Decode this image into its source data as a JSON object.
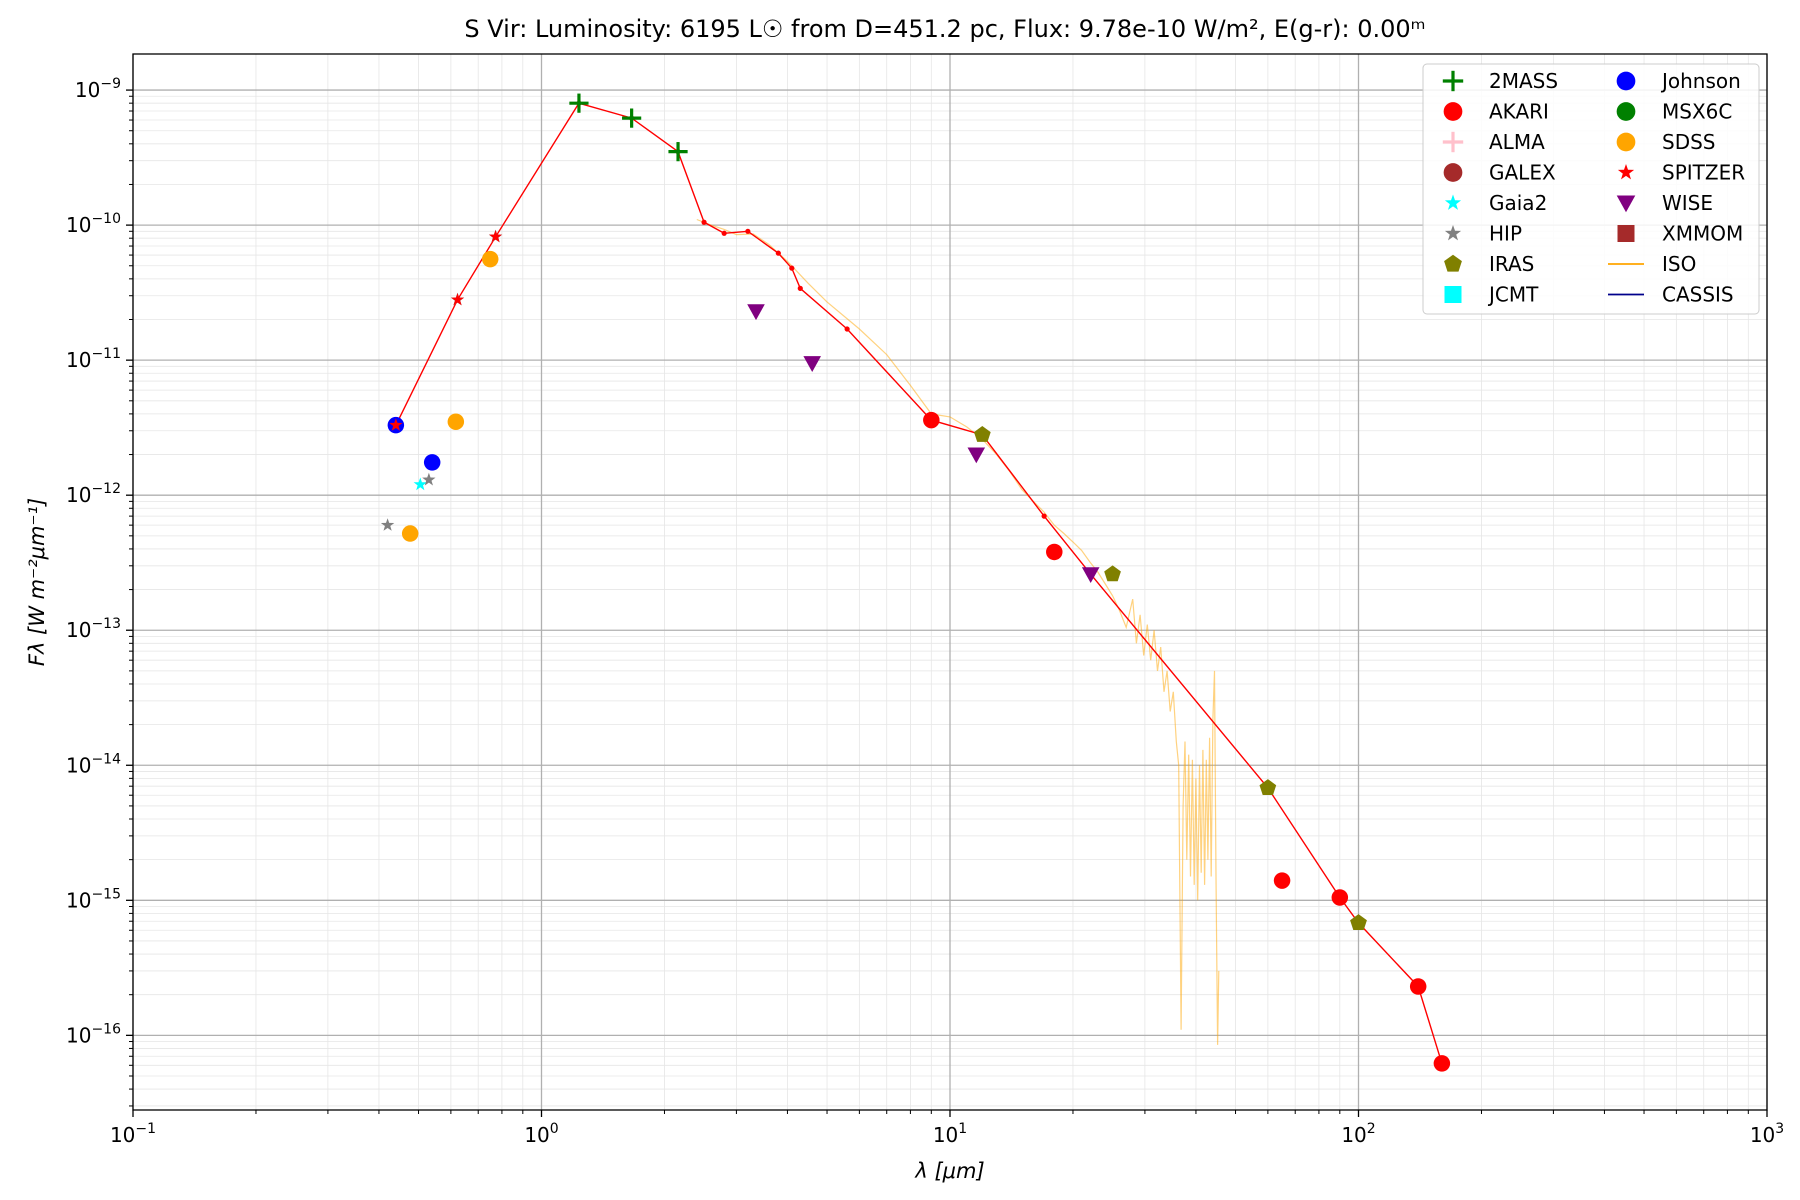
{
  "chart_data": {
    "type": "scatter",
    "title_text": "S Vir:  Luminosity: 6195 L☉ from D=451.2 pc, Flux: 9.78e-10 W/m², E(g-r): 0.00ᵐ",
    "xlabel": "λ [μm]",
    "ylabel": "Fλ [W m⁻²μm⁻¹]",
    "xscale": "log",
    "yscale": "log",
    "xlim": [
      0.1,
      1000
    ],
    "ylim": [
      2.8e-17,
      1.85e-09
    ],
    "x_ticks": [
      {
        "value": 0.1,
        "base": "10",
        "exp": "−1"
      },
      {
        "value": 1,
        "base": "10",
        "exp": "0"
      },
      {
        "value": 10,
        "base": "10",
        "exp": "1"
      },
      {
        "value": 100,
        "base": "10",
        "exp": "2"
      },
      {
        "value": 1000,
        "base": "10",
        "exp": "3"
      }
    ],
    "y_ticks": [
      {
        "value": 1e-16,
        "base": "10",
        "exp": "−16"
      },
      {
        "value": 1e-15,
        "base": "10",
        "exp": "−15"
      },
      {
        "value": 1e-14,
        "base": "10",
        "exp": "−14"
      },
      {
        "value": 1e-13,
        "base": "10",
        "exp": "−13"
      },
      {
        "value": 1e-12,
        "base": "10",
        "exp": "−12"
      },
      {
        "value": 1e-11,
        "base": "10",
        "exp": "−11"
      },
      {
        "value": 1e-10,
        "base": "10",
        "exp": "−10"
      },
      {
        "value": 1e-09,
        "base": "10",
        "exp": "−9"
      }
    ],
    "grid": true,
    "legend_position": "top-right",
    "legend": [
      {
        "label": "2MASS",
        "marker": "plus",
        "color": "#008000"
      },
      {
        "label": "AKARI",
        "marker": "circle",
        "color": "#ff0000"
      },
      {
        "label": "ALMA",
        "marker": "plus",
        "color": "#ffc0cb"
      },
      {
        "label": "GALEX",
        "marker": "circle",
        "color": "#a52a2a"
      },
      {
        "label": "Gaia2",
        "marker": "star",
        "color": "#00ffff"
      },
      {
        "label": "HIP",
        "marker": "star",
        "color": "#808080"
      },
      {
        "label": "IRAS",
        "marker": "pentagon",
        "color": "#808000"
      },
      {
        "label": "JCMT",
        "marker": "square",
        "color": "#00ffff"
      },
      {
        "label": "Johnson",
        "marker": "circle",
        "color": "#0000ff"
      },
      {
        "label": "MSX6C",
        "marker": "circle",
        "color": "#008000"
      },
      {
        "label": "SDSS",
        "marker": "circle",
        "color": "#ffa500"
      },
      {
        "label": "SPITZER",
        "marker": "star",
        "color": "#ff0000"
      },
      {
        "label": "WISE",
        "marker": "triangle-down",
        "color": "#800080"
      },
      {
        "label": "XMMOM",
        "marker": "square",
        "color": "#a52a2a"
      },
      {
        "label": "ISO",
        "marker": "line",
        "color": "#ffa500"
      },
      {
        "label": "CASSIS",
        "marker": "line",
        "color": "#00008b"
      }
    ],
    "series": [
      {
        "name": "2MASS",
        "marker": "plus",
        "color": "#008000",
        "points": [
          [
            1.235,
            8e-10
          ],
          [
            1.662,
            6.2e-10
          ],
          [
            2.159,
            3.5e-10
          ]
        ]
      },
      {
        "name": "AKARI",
        "marker": "circle",
        "color": "#ff0000",
        "points": [
          [
            9.0,
            3.6e-12
          ],
          [
            18.0,
            3.8e-13
          ],
          [
            65.0,
            1.4e-15
          ],
          [
            90.0,
            1.05e-15
          ],
          [
            140.0,
            2.3e-16
          ],
          [
            160.0,
            6.2e-17
          ]
        ]
      },
      {
        "name": "Gaia2",
        "marker": "star",
        "color": "#00ffff",
        "points": [
          [
            0.505,
            1.2e-12
          ],
          [
            0.623,
            2.8e-11
          ],
          [
            0.772,
            8.2e-11
          ]
        ]
      },
      {
        "name": "HIP",
        "marker": "star",
        "color": "#808080",
        "points": [
          [
            0.42,
            6e-13
          ],
          [
            0.53,
            1.3e-12
          ]
        ]
      },
      {
        "name": "IRAS",
        "marker": "pentagon",
        "color": "#808000",
        "points": [
          [
            12.0,
            2.8e-12
          ],
          [
            25.0,
            2.6e-13
          ],
          [
            60.0,
            6.8e-15
          ],
          [
            100.0,
            6.8e-16
          ]
        ]
      },
      {
        "name": "Johnson",
        "marker": "circle",
        "color": "#0000ff",
        "points": [
          [
            0.44,
            3.3e-12
          ],
          [
            0.54,
            1.75e-12
          ]
        ]
      },
      {
        "name": "SDSS",
        "marker": "circle",
        "color": "#ffa500",
        "points": [
          [
            0.477,
            5.2e-13
          ],
          [
            0.617,
            3.5e-12
          ],
          [
            0.749,
            5.6e-11
          ]
        ]
      },
      {
        "name": "SPITZER",
        "marker": "star",
        "color": "#ff0000",
        "points": [
          [
            0.44,
            3.3e-12
          ],
          [
            0.623,
            2.8e-11
          ],
          [
            0.772,
            8.2e-11
          ]
        ]
      },
      {
        "name": "WISE",
        "marker": "triangle-down",
        "color": "#800080",
        "points": [
          [
            3.35,
            2.3e-11
          ],
          [
            4.6,
            9.5e-12
          ],
          [
            11.6,
            2e-12
          ],
          [
            22.1,
            2.6e-13
          ]
        ]
      }
    ],
    "model_line": {
      "color": "#ff0000",
      "points": [
        [
          0.44,
          3.3e-12
        ],
        [
          0.623,
          2.8e-11
        ],
        [
          0.772,
          8.2e-11
        ],
        [
          1.235,
          8e-10
        ],
        [
          1.662,
          6.2e-10
        ],
        [
          2.159,
          3.5e-10
        ],
        [
          2.5,
          1.05e-10
        ],
        [
          2.8,
          8.7e-11
        ],
        [
          3.2,
          9e-11
        ],
        [
          3.8,
          6.2e-11
        ],
        [
          4.1,
          4.8e-11
        ],
        [
          4.3,
          3.4e-11
        ],
        [
          5.6,
          1.7e-11
        ],
        [
          9.0,
          3.6e-12
        ],
        [
          12.0,
          2.8e-12
        ],
        [
          17.0,
          7e-13
        ],
        [
          22.1,
          2.6e-13
        ],
        [
          60.0,
          6.8e-15
        ],
        [
          90.0,
          1.05e-15
        ],
        [
          100.0,
          6.8e-16
        ],
        [
          140.0,
          2.3e-16
        ],
        [
          160.0,
          6.2e-17
        ]
      ]
    },
    "iso_spectrum": {
      "color": "#ffa500",
      "points": [
        [
          2.4,
          1.1e-10
        ],
        [
          2.6,
          1e-10
        ],
        [
          2.8,
          9.3e-11
        ],
        [
          3.0,
          8.5e-11
        ],
        [
          3.3,
          8.6e-11
        ],
        [
          3.6,
          7.2e-11
        ],
        [
          4.0,
          5.4e-11
        ],
        [
          4.5,
          3.7e-11
        ],
        [
          5.0,
          2.7e-11
        ],
        [
          6.0,
          1.7e-11
        ],
        [
          7.0,
          1.1e-11
        ],
        [
          8.0,
          6.5e-12
        ],
        [
          9.0,
          4e-12
        ],
        [
          10.0,
          3.8e-12
        ],
        [
          11.0,
          3.2e-12
        ],
        [
          12.0,
          2.6e-12
        ],
        [
          13.0,
          2e-12
        ],
        [
          14.0,
          1.5e-12
        ],
        [
          15.0,
          1.1e-12
        ],
        [
          16.0,
          9e-13
        ],
        [
          17.0,
          7.5e-13
        ],
        [
          18.0,
          6e-13
        ],
        [
          19.0,
          5.2e-13
        ],
        [
          20.0,
          4.5e-13
        ],
        [
          21.0,
          3.9e-13
        ],
        [
          22.0,
          3.2e-13
        ],
        [
          23.0,
          2.7e-13
        ],
        [
          24.0,
          2.2e-13
        ],
        [
          25.0,
          1.8e-13
        ],
        [
          26.0,
          1.4e-13
        ],
        [
          27.0,
          1.05e-13
        ],
        [
          28.0,
          1.7e-13
        ],
        [
          28.6,
          8e-14
        ],
        [
          29.2,
          1.3e-13
        ],
        [
          29.8,
          6.5e-14
        ],
        [
          30.4,
          1.1e-13
        ],
        [
          31.0,
          6e-14
        ],
        [
          31.6,
          1e-13
        ],
        [
          32.2,
          5e-14
        ],
        [
          32.8,
          7.5e-14
        ],
        [
          33.4,
          3.5e-14
        ],
        [
          34.0,
          5e-14
        ],
        [
          34.6,
          2.5e-14
        ],
        [
          35.2,
          3.5e-14
        ],
        [
          35.8,
          1.5e-14
        ],
        [
          36.3,
          1e-14
        ],
        [
          36.8,
          1.1e-16
        ],
        [
          37.2,
          5e-15
        ],
        [
          37.6,
          1.5e-14
        ],
        [
          38.0,
          2e-15
        ],
        [
          38.4,
          1.2e-14
        ],
        [
          38.8,
          1.5e-15
        ],
        [
          39.2,
          1.1e-14
        ],
        [
          39.6,
          1.3e-15
        ],
        [
          40.0,
          8e-15
        ],
        [
          40.4,
          1e-15
        ],
        [
          40.8,
          1e-14
        ],
        [
          41.2,
          1.6e-15
        ],
        [
          41.6,
          1.3e-14
        ],
        [
          42.0,
          1.3e-15
        ],
        [
          42.4,
          1.1e-14
        ],
        [
          42.8,
          2e-15
        ],
        [
          43.2,
          1.6e-14
        ],
        [
          43.6,
          1.5e-15
        ],
        [
          44.0,
          2.2e-14
        ],
        [
          44.4,
          5e-14
        ],
        [
          44.8,
          1.5e-15
        ],
        [
          45.2,
          8.5e-17
        ],
        [
          45.5,
          3e-16
        ]
      ]
    }
  }
}
